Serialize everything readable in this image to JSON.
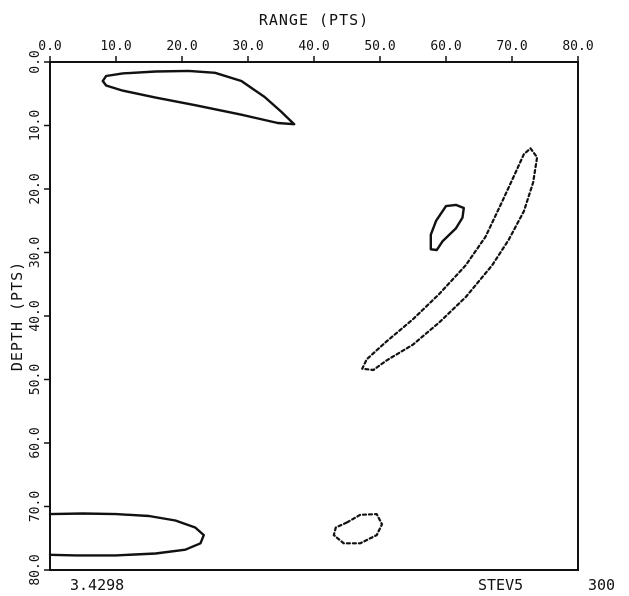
{
  "chart_data": {
    "type": "contour",
    "xlabel": "RANGE (PTS)",
    "ylabel": "DEPTH (PTS)",
    "xlim": [
      0,
      80
    ],
    "ylim": [
      0,
      80
    ],
    "y_inverted": true,
    "x_ticks": [
      "0.0",
      "10.0",
      "20.0",
      "30.0",
      "40.0",
      "50.0",
      "60.0",
      "70.0",
      "80.0"
    ],
    "y_ticks": [
      "0.0",
      "10.0",
      "20.0",
      "30.0",
      "40.0",
      "50.0",
      "60.0",
      "70.0",
      "80.0"
    ],
    "contours": [
      {
        "style": "solid",
        "points": [
          [
            8,
            3
          ],
          [
            8.5,
            2.2
          ],
          [
            11,
            1.8
          ],
          [
            16,
            1.5
          ],
          [
            21,
            1.4
          ],
          [
            25,
            1.7
          ],
          [
            29,
            3
          ],
          [
            32.5,
            5.5
          ],
          [
            35,
            7.8
          ],
          [
            37,
            9.8
          ],
          [
            34.5,
            9.6
          ],
          [
            29,
            8.3
          ],
          [
            22,
            6.8
          ],
          [
            16,
            5.6
          ],
          [
            11,
            4.5
          ],
          [
            8.5,
            3.7
          ],
          [
            8,
            3
          ]
        ]
      },
      {
        "style": "solid",
        "points": [
          [
            0,
            71.2
          ],
          [
            5,
            71.1
          ],
          [
            10,
            71.2
          ],
          [
            15,
            71.5
          ],
          [
            19,
            72.2
          ],
          [
            22,
            73.3
          ],
          [
            23.3,
            74.5
          ],
          [
            22.8,
            75.8
          ],
          [
            20.5,
            76.8
          ],
          [
            16,
            77.4
          ],
          [
            10,
            77.7
          ],
          [
            4,
            77.7
          ],
          [
            0,
            77.6
          ]
        ]
      },
      {
        "style": "solid",
        "points": [
          [
            58.5,
            25
          ],
          [
            60,
            22.7
          ],
          [
            61.5,
            22.5
          ],
          [
            62.7,
            23
          ],
          [
            62.5,
            24.5
          ],
          [
            61.5,
            26.2
          ],
          [
            59.5,
            28.2
          ],
          [
            58.6,
            29.6
          ],
          [
            57.7,
            29.5
          ],
          [
            57.7,
            27.2
          ],
          [
            58.5,
            25
          ]
        ]
      },
      {
        "style": "dashed",
        "points": [
          [
            72.8,
            13.6
          ],
          [
            73.8,
            15
          ],
          [
            73.2,
            19
          ],
          [
            71.8,
            23.5
          ],
          [
            69.5,
            28
          ],
          [
            67,
            32
          ],
          [
            63,
            37
          ],
          [
            59,
            41
          ],
          [
            55,
            44.5
          ],
          [
            51,
            47
          ],
          [
            49,
            48.5
          ],
          [
            47.3,
            48.3
          ],
          [
            48,
            46.8
          ],
          [
            51,
            44
          ],
          [
            55,
            40.5
          ],
          [
            59,
            36.5
          ],
          [
            63,
            32
          ],
          [
            66,
            27.5
          ],
          [
            68.5,
            22
          ],
          [
            70.5,
            17.5
          ],
          [
            71.8,
            14.5
          ],
          [
            72.8,
            13.6
          ]
        ]
      },
      {
        "style": "dashed",
        "points": [
          [
            45,
            72.5
          ],
          [
            47,
            71.3
          ],
          [
            49.5,
            71.2
          ],
          [
            50.3,
            72.8
          ],
          [
            49.5,
            74.5
          ],
          [
            47,
            75.8
          ],
          [
            44.5,
            75.8
          ],
          [
            43,
            74.5
          ],
          [
            43.3,
            73.3
          ],
          [
            45,
            72.5
          ]
        ]
      }
    ]
  },
  "footer": {
    "left": "3.4298",
    "right": "STEV5",
    "corner": "300"
  }
}
